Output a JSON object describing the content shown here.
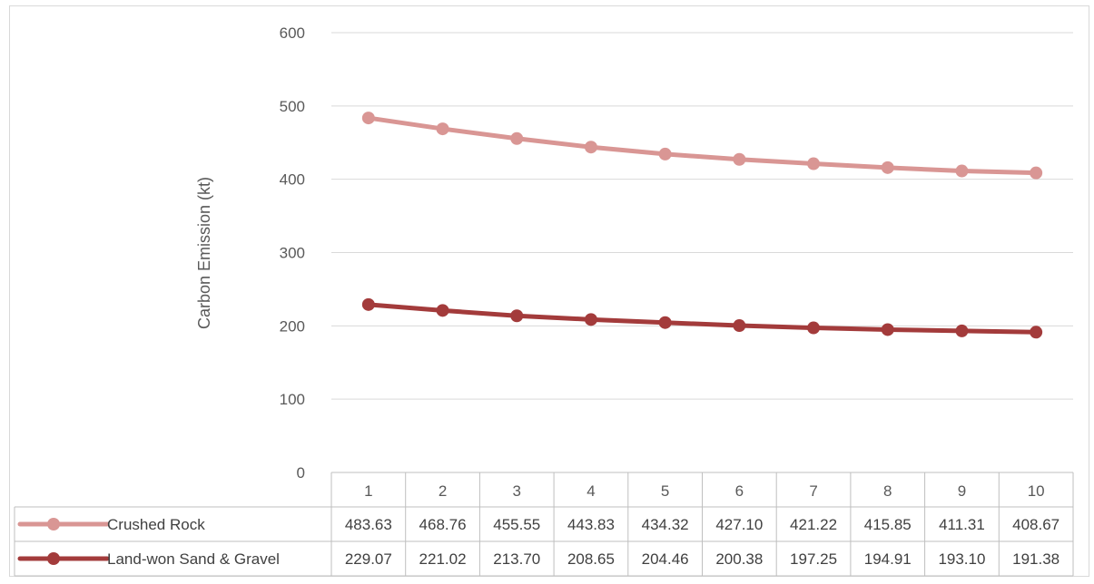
{
  "chart_data": {
    "type": "line",
    "ylabel": "Carbon Emission (kt)",
    "ylim": [
      0,
      600
    ],
    "yticks": [
      "0",
      "100",
      "200",
      "300",
      "400",
      "500",
      "600"
    ],
    "categories": [
      "1",
      "2",
      "3",
      "4",
      "5",
      "6",
      "7",
      "8",
      "9",
      "10"
    ],
    "grid": true,
    "legend": "data-table",
    "series": [
      {
        "name": "Crushed Rock",
        "color": "#d99694",
        "values": [
          483.63,
          468.76,
          455.55,
          443.83,
          434.32,
          427.1,
          421.22,
          415.85,
          411.31,
          408.67
        ],
        "labels": [
          "483.63",
          "468.76",
          "455.55",
          "443.83",
          "434.32",
          "427.10",
          "421.22",
          "415.85",
          "411.31",
          "408.67"
        ]
      },
      {
        "name": "Land-won Sand & Gravel",
        "color": "#a33b3b",
        "values": [
          229.07,
          221.02,
          213.7,
          208.65,
          204.46,
          200.38,
          197.25,
          194.91,
          193.1,
          191.38
        ],
        "labels": [
          "229.07",
          "221.02",
          "213.70",
          "208.65",
          "204.46",
          "200.38",
          "197.25",
          "194.91",
          "193.10",
          "191.38"
        ]
      }
    ]
  }
}
